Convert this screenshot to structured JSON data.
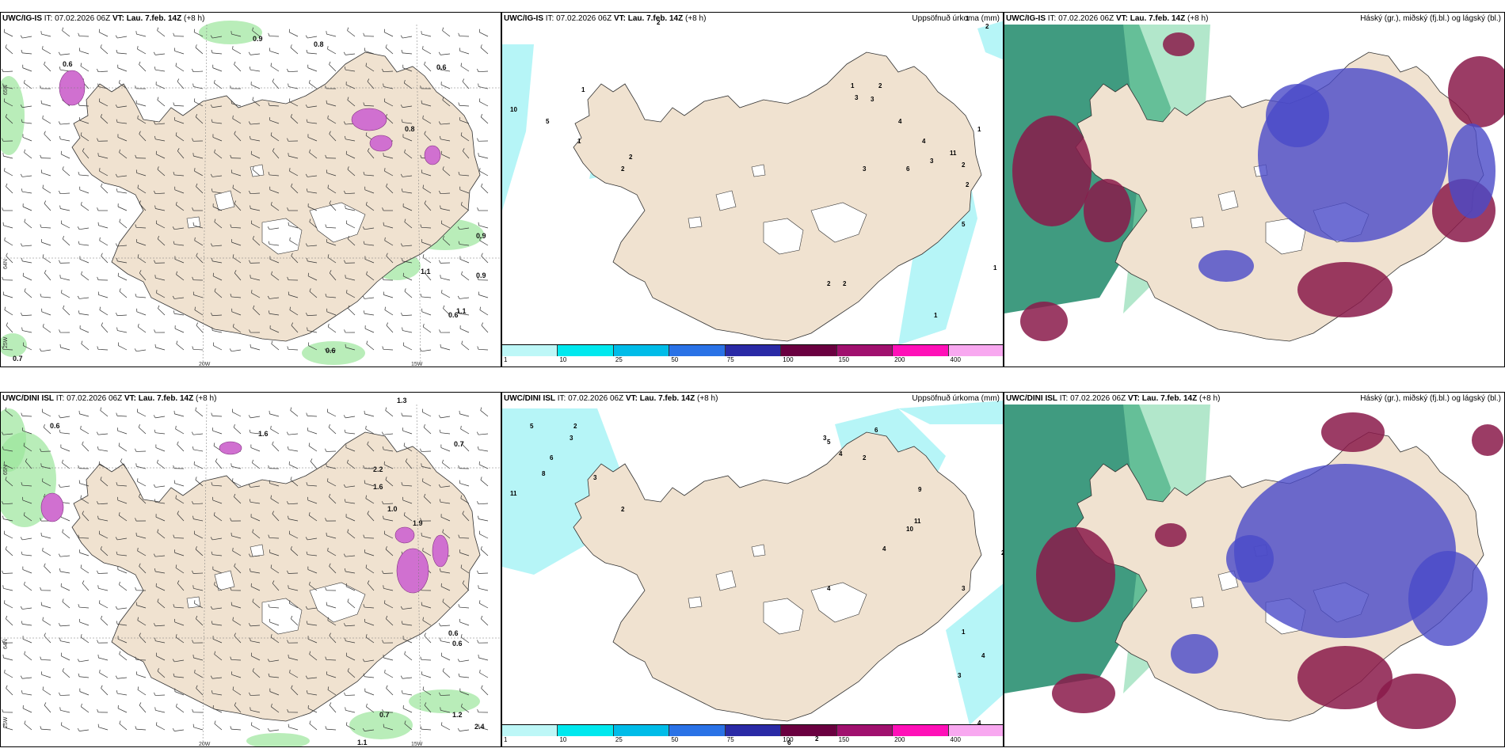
{
  "rows": [
    {
      "model": "UWC/IG-IS",
      "it_label": "IT:",
      "it": "07.02.2026 06Z",
      "vt_label": "VT:",
      "vt": "Lau. 7.feb. 14Z",
      "lead": "(+8 h)",
      "wind_values": [
        "0.6",
        "0.9",
        "0.8",
        "0.6",
        "0.8",
        "0.9",
        "1.1",
        "0.9",
        "0.6",
        "0.7",
        "0.6",
        "1.1"
      ],
      "precip_values": [
        "10",
        "5",
        "1",
        "1",
        "2",
        "2",
        "2",
        "1",
        "3",
        "3",
        "2",
        "4",
        "6",
        "3",
        "4",
        "11",
        "2",
        "3",
        "2",
        "5",
        "2",
        "2",
        "1",
        "1",
        "2",
        "1",
        "1"
      ],
      "axis": {
        "lon1": "20W",
        "lon2": "15W",
        "lat_a": "65N",
        "lat_b": "64N",
        "lon_left": "25W"
      }
    },
    {
      "model": "UWC/DINI ISL",
      "it_label": "IT:",
      "it": "07.02.2026 06Z",
      "vt_label": "VT:",
      "vt": "Lau. 7.feb. 14Z",
      "lead": "(+8 h)",
      "wind_values": [
        "0.6",
        "1.6",
        "1.3",
        "0.7",
        "2.2",
        "1.6",
        "1.9",
        "0.6",
        "1.0",
        "1.2",
        "0.7",
        "1.1",
        "2.4",
        "0.6"
      ],
      "precip_values": [
        "5",
        "2",
        "3",
        "6",
        "8",
        "11",
        "3",
        "2",
        "3",
        "5",
        "4",
        "9",
        "11",
        "10",
        "4",
        "2",
        "6",
        "4",
        "3",
        "2",
        "1",
        "1",
        "4",
        "3",
        "2",
        "6",
        "4"
      ],
      "axis": {
        "lon1": "20W",
        "lon2": "15W",
        "lat_a": "65N",
        "lat_b": "64N",
        "lon_left": "25W"
      }
    }
  ],
  "precip_title": "Uppsöfnuð úrkoma (mm)",
  "cloud_title": "Háský (gr.), miðský (fj.bl.) og lágský (bl.)",
  "colorbar": {
    "labels": [
      "1",
      "10",
      "25",
      "50",
      "75",
      "100",
      "150",
      "200",
      "400"
    ],
    "colors": [
      "#bdf7f7",
      "#00e8ee",
      "#00bce8",
      "#2a72e6",
      "#2a2aa6",
      "#6a0040",
      "#a0106e",
      "#ff10b8",
      "#f8a8f0"
    ]
  },
  "colors": {
    "land": "#f0e2d0",
    "coast": "#333333",
    "ice": "#ffffff",
    "high_cloud": "#1e8a6a",
    "mid_cloud": "#8a1a4a",
    "low_cloud": "#4a4ac8",
    "precip_light": "#aef4f6",
    "wind_green": "#9be59b",
    "snow_purple": "#d070d0"
  }
}
